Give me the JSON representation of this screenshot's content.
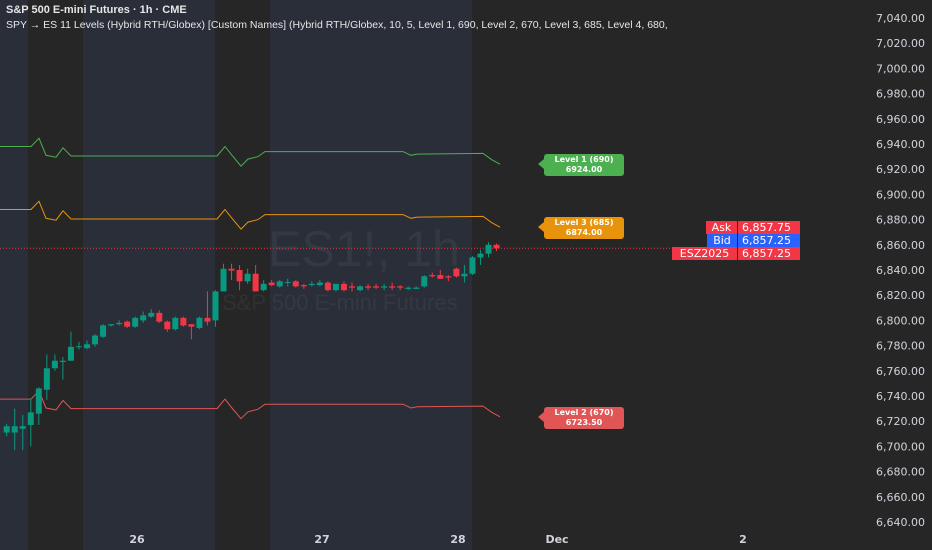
{
  "header": {
    "title": "S&P 500 E-mini Futures · 1h · CME",
    "study": "SPY → ES 11 Levels (Hybrid RTH/Globex) [Custom Names] (Hybrid RTH/Globex, 10, 5, Level 1, 690, Level 2, 670, Level 3, 685, Level 4, 680,"
  },
  "watermark": {
    "symbol": "ES1!, 1h",
    "name": "S&P 500 E-mini Futures"
  },
  "colors": {
    "up": "#089981",
    "down": "#f23645",
    "level1": "#4caf50",
    "level2": "#e05555",
    "level3": "#e8930c",
    "ask": "#f23645",
    "bid": "#2962ff",
    "session_rth": "#2a2e39",
    "session_globex": "#262626"
  },
  "price_axis": {
    "ticks": [
      "7,040.00",
      "7,020.00",
      "7,000.00",
      "6,980.00",
      "6,960.00",
      "6,940.00",
      "6,920.00",
      "6,900.00",
      "6,880.00",
      "6,860.00",
      "6,840.00",
      "6,820.00",
      "6,800.00",
      "6,780.00",
      "6,760.00",
      "6,740.00",
      "6,720.00",
      "6,700.00",
      "6,680.00",
      "6,660.00",
      "6,640.00"
    ],
    "range": [
      6640,
      7040
    ]
  },
  "time_axis": {
    "labels": [
      "26",
      "27",
      "28",
      "Dec",
      "2"
    ]
  },
  "levels": [
    {
      "label": "Level 1 (690)",
      "value": "6924.00",
      "color_key": "level1",
      "series": [
        6938,
        6938,
        6944.5,
        6931,
        6929.5,
        6937,
        6930.5,
        6930.5,
        6938,
        6931,
        6922.5,
        6928,
        6930,
        6934,
        6934,
        6931,
        6932,
        6932.5,
        6927.5,
        6924
      ]
    },
    {
      "label": "Level 3 (685)",
      "value": "6874.00",
      "color_key": "level3",
      "series": [
        6888,
        6888,
        6894.5,
        6881,
        6879.5,
        6887,
        6880.5,
        6880.5,
        6888,
        6881,
        6872.5,
        6878,
        6880,
        6884,
        6884,
        6881,
        6882,
        6882.5,
        6877.5,
        6874
      ]
    },
    {
      "label": "Level 2 (670)",
      "value": "6723.50",
      "color_key": "level2",
      "series": [
        6737.5,
        6737.5,
        6744,
        6730.5,
        6729,
        6736.5,
        6730,
        6730,
        6737.5,
        6730.5,
        6722,
        6727.5,
        6729.5,
        6733.5,
        6733.5,
        6730.5,
        6731.5,
        6732,
        6727,
        6723.5
      ]
    }
  ],
  "quotes": {
    "ask_label": "Ask",
    "ask": "6,857.75",
    "bid_label": "Bid",
    "bid": "6,857.25",
    "last_label": "ESZ2025",
    "last": "6,857.25",
    "last_value": 6857.25
  },
  "chart_data": {
    "type": "candlestick",
    "ylim": [
      6640,
      7040
    ],
    "candles": [
      [
        6711,
        6718,
        6708,
        6716
      ],
      [
        6711,
        6730,
        6697,
        6716
      ],
      [
        6714,
        6725,
        6697,
        6716
      ],
      [
        6717,
        6738,
        6700,
        6727
      ],
      [
        6726,
        6747,
        6717,
        6746
      ],
      [
        6745,
        6773,
        6737,
        6762
      ],
      [
        6762,
        6773,
        6760,
        6768
      ],
      [
        6767,
        6771,
        6753,
        6768
      ],
      [
        6768,
        6791,
        6768,
        6779
      ],
      [
        6779,
        6783,
        6777,
        6779.5
      ],
      [
        6778,
        6784,
        6777,
        6781
      ],
      [
        6781,
        6789,
        6779,
        6788
      ],
      [
        6787,
        6797,
        6786,
        6796
      ],
      [
        6796,
        6797,
        6795,
        6797
      ],
      [
        6797,
        6800,
        6796,
        6798
      ],
      [
        6799,
        6800,
        6794,
        6795
      ],
      [
        6795,
        6803,
        6794,
        6802
      ],
      [
        6800,
        6807,
        6798,
        6804
      ],
      [
        6803,
        6809,
        6802,
        6806
      ],
      [
        6806,
        6808,
        6798,
        6799
      ],
      [
        6799,
        6800,
        6791,
        6793
      ],
      [
        6793,
        6803,
        6792,
        6802
      ],
      [
        6802,
        6803,
        6795,
        6796
      ],
      [
        6797,
        6797,
        6785,
        6795
      ],
      [
        6794,
        6803,
        6793,
        6802
      ],
      [
        6802,
        6823,
        6796,
        6799
      ],
      [
        6800,
        6824,
        6795,
        6823
      ],
      [
        6823,
        6845,
        6823,
        6841
      ],
      [
        6841,
        6845,
        6832,
        6839.5
      ],
      [
        6840,
        6844,
        6824,
        6831
      ],
      [
        6831,
        6841,
        6829,
        6837
      ],
      [
        6837,
        6844,
        6823,
        6823
      ],
      [
        6824,
        6832,
        6823,
        6829
      ],
      [
        6830,
        6832,
        6827,
        6828
      ],
      [
        6827,
        6832,
        6826,
        6831
      ],
      [
        6830,
        6833,
        6827,
        6830.5
      ],
      [
        6831,
        6832,
        6826,
        6827
      ],
      [
        6828,
        6829,
        6825,
        6827
      ],
      [
        6828,
        6831,
        6827,
        6829
      ],
      [
        6828,
        6832,
        6827,
        6830
      ],
      [
        6830,
        6831,
        6823,
        6824
      ],
      [
        6824,
        6829,
        6823,
        6829
      ],
      [
        6829,
        6831,
        6823,
        6824
      ],
      [
        6827,
        6830,
        6823,
        6826
      ],
      [
        6824,
        6828,
        6823,
        6827
      ],
      [
        6827,
        6829,
        6824,
        6826
      ],
      [
        6827,
        6829,
        6825,
        6826
      ],
      [
        6826,
        6829,
        6824,
        6827
      ],
      [
        6827,
        6830,
        6824,
        6826
      ],
      [
        6827,
        6828,
        6824,
        6826
      ],
      [
        6825,
        6827,
        6824,
        6826
      ],
      [
        6825,
        6827,
        6825,
        6826
      ],
      [
        6827,
        6836,
        6826,
        6835
      ],
      [
        6836,
        6838,
        6834,
        6835
      ],
      [
        6836,
        6840,
        6833,
        6833
      ],
      [
        6835,
        6836,
        6831,
        6834
      ],
      [
        6841,
        6842,
        6834,
        6835
      ],
      [
        6835,
        6844,
        6830,
        6837
      ],
      [
        6837,
        6851,
        6836,
        6850
      ],
      [
        6850,
        6856,
        6844,
        6853
      ],
      [
        6853,
        6862,
        6850,
        6860
      ],
      [
        6860,
        6861,
        6855,
        6857.25
      ]
    ]
  }
}
